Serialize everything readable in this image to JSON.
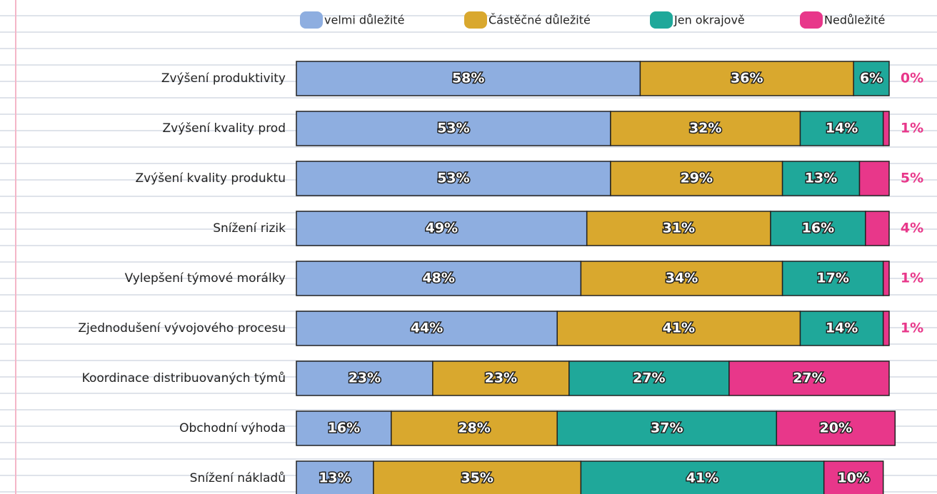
{
  "chart_data": {
    "type": "stacked-barh",
    "categories": [
      "Zvýšení produktivity",
      "Zvýšení kvality prod",
      "Zvýšení kvality produktu",
      "Snížení rizik",
      "Vylepšení týmové morálky",
      "Zjednodušení vývojového procesu",
      "Koordinace distribuovaných týmů",
      "Obchodní výhoda",
      "Snížení nákladů"
    ],
    "series": [
      {
        "name": "velmi důležité",
        "color": "#8eaee0",
        "values": [
          58,
          53,
          53,
          49,
          48,
          44,
          23,
          16,
          13
        ],
        "value_labels": [
          "58%",
          "53%",
          "53%",
          "49%",
          "48%",
          "44%",
          "23%",
          "16%",
          "13%"
        ]
      },
      {
        "name": "Částěčné důležité",
        "color": "#d9a82e",
        "values": [
          36,
          32,
          29,
          31,
          34,
          41,
          23,
          28,
          35
        ],
        "value_labels": [
          "36%",
          "32%",
          "29%",
          "31%",
          "34%",
          "41%",
          "23%",
          "28%",
          "35%"
        ]
      },
      {
        "name": "Jen okrajově",
        "color": "#1fa89a",
        "values": [
          6,
          14,
          13,
          16,
          17,
          14,
          27,
          37,
          41
        ],
        "value_labels": [
          "6%",
          "14%",
          "13%",
          "16%",
          "17%",
          "14%",
          "27%",
          "37%",
          "41%"
        ]
      },
      {
        "name": "Nedůležité",
        "color": "#e8378a",
        "values": [
          0,
          1,
          5,
          4,
          1,
          1,
          27,
          20,
          10
        ],
        "value_labels": [
          "0%",
          "1%",
          "5%",
          "4%",
          "1%",
          "1%",
          "27%",
          "20%",
          "10%"
        ]
      }
    ],
    "xlim": [
      0,
      100
    ],
    "legend": "top"
  }
}
